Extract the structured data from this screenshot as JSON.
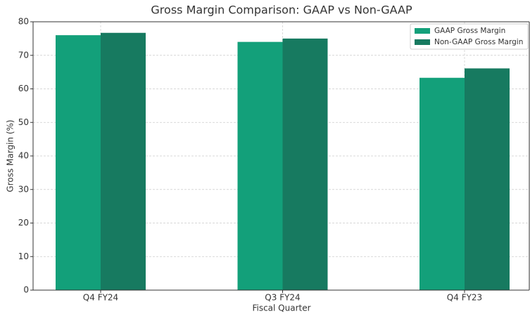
{
  "chart_data": {
    "type": "bar",
    "title": "Gross Margin Comparison: GAAP vs Non-GAAP",
    "x_label": "Fiscal Quarter",
    "y_label": "Gross Margin (%)",
    "categories": [
      "Q4 FY24",
      "Q3 FY24",
      "Q4 FY23"
    ],
    "series": [
      {
        "name": "GAAP Gross Margin",
        "color": "#13a07a",
        "values": [
          76.0,
          74.0,
          63.3
        ]
      },
      {
        "name": "Non-GAAP Gross Margin",
        "color": "#177a60",
        "values": [
          76.7,
          75.0,
          66.1
        ]
      }
    ],
    "ylim": [
      0,
      80
    ],
    "yticks": [
      0,
      10,
      20,
      30,
      40,
      50,
      60,
      70,
      80
    ],
    "grid": true,
    "legend": "upper right"
  }
}
